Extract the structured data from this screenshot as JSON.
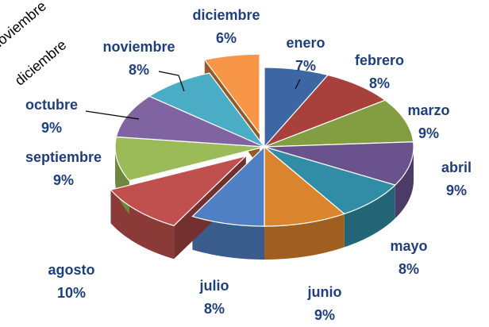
{
  "chart_data": {
    "type": "pie",
    "annotations": [
      "noviembre",
      "diciembre"
    ],
    "categories": [
      "enero",
      "febrero",
      "marzo",
      "abril",
      "mayo",
      "junio",
      "julio",
      "agosto",
      "septiembre",
      "octubre",
      "noviembre",
      "diciembre"
    ],
    "values": [
      7,
      8,
      9,
      9,
      8,
      9,
      8,
      10,
      9,
      9,
      8,
      6
    ],
    "value_labels": [
      "7%",
      "8%",
      "9%",
      "9%",
      "8%",
      "9%",
      "8%",
      "10%",
      "9%",
      "9%",
      "8%",
      "6%"
    ],
    "colors": [
      "#3c67a3",
      "#a8403c",
      "#829d42",
      "#6a528d",
      "#318ca5",
      "#db842e",
      "#4f80c4",
      "#c0504d",
      "#9bbb59",
      "#8064a2",
      "#4bacc6",
      "#f79646"
    ],
    "exploded": [
      "agosto",
      "diciembre"
    ]
  }
}
